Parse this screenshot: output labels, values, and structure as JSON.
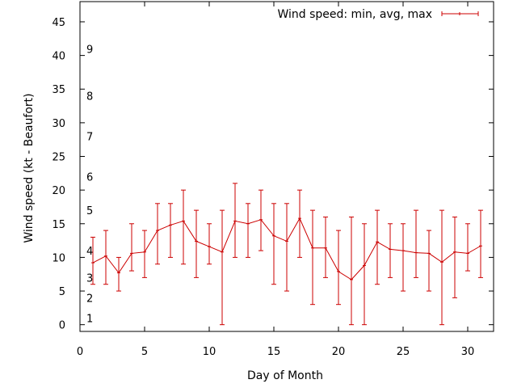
{
  "chart_data": {
    "type": "line",
    "xlabel": "Day of Month",
    "ylabel": "Wind speed (kt - Beaufort)",
    "xlim": [
      0,
      32
    ],
    "ylim": [
      -1,
      48
    ],
    "x_ticks": [
      0,
      5,
      10,
      15,
      20,
      25,
      30
    ],
    "y_ticks": [
      0,
      5,
      10,
      15,
      20,
      25,
      30,
      35,
      40,
      45
    ],
    "beaufort_labels": [
      {
        "label": "1",
        "y": 1
      },
      {
        "label": "2",
        "y": 4
      },
      {
        "label": "3",
        "y": 7
      },
      {
        "label": "4",
        "y": 11
      },
      {
        "label": "5",
        "y": 17
      },
      {
        "label": "6",
        "y": 22
      },
      {
        "label": "7",
        "y": 28
      },
      {
        "label": "8",
        "y": 34
      },
      {
        "label": "9",
        "y": 41
      }
    ],
    "series": [
      {
        "name": "Wind speed: min, avg, max",
        "color": "#cc0000",
        "x": [
          1,
          2,
          3,
          4,
          5,
          6,
          7,
          8,
          9,
          10,
          11,
          12,
          13,
          14,
          15,
          16,
          17,
          18,
          19,
          20,
          21,
          22,
          23,
          24,
          25,
          26,
          27,
          28,
          29,
          30,
          31
        ],
        "avg": [
          9.2,
          10.2,
          7.7,
          10.6,
          10.8,
          14.0,
          14.8,
          15.4,
          12.4,
          11.6,
          10.8,
          15.4,
          15.0,
          15.6,
          13.2,
          12.4,
          15.8,
          11.4,
          11.4,
          7.9,
          6.7,
          8.8,
          12.3,
          11.2,
          11.0,
          10.7,
          10.6,
          9.3,
          10.8,
          10.6,
          11.7
        ],
        "min": [
          6,
          6,
          5,
          8,
          7,
          9,
          10,
          9,
          7,
          9,
          0,
          10,
          10,
          11,
          6,
          5,
          10,
          3,
          7,
          3,
          0,
          0,
          6,
          7,
          5,
          7,
          5,
          0,
          4,
          8,
          7
        ],
        "max": [
          13,
          14,
          10,
          15,
          14,
          18,
          18,
          20,
          17,
          15,
          17,
          21,
          18,
          20,
          18,
          18,
          20,
          17,
          16,
          14,
          16,
          15,
          17,
          15,
          15,
          17,
          14,
          17,
          16,
          15,
          17
        ]
      }
    ],
    "legend_position": "top-right",
    "grid": false
  }
}
